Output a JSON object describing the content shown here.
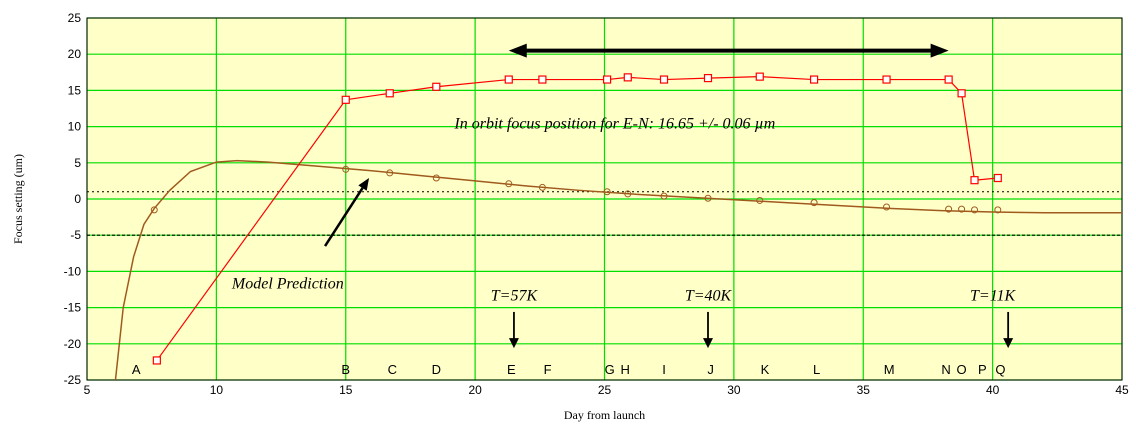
{
  "chart_data": {
    "type": "line",
    "title": "",
    "xlabel": "Day from launch",
    "ylabel": "Focus setting (um)",
    "xlim": [
      5,
      45
    ],
    "ylim": [
      -25,
      25
    ],
    "x_ticks": [
      5,
      10,
      15,
      20,
      25,
      30,
      35,
      40,
      45
    ],
    "y_ticks": [
      -25,
      -20,
      -15,
      -10,
      -5,
      0,
      5,
      10,
      15,
      20,
      25
    ],
    "grid": true,
    "colors": {
      "background": "#ffffc8",
      "grid": "#00dd00",
      "measured": "#ff0000",
      "model": "#a05a1e"
    },
    "series": [
      {
        "points": [
          [
            7.7,
            -22.3
          ],
          [
            15.0,
            13.7
          ],
          [
            16.7,
            14.6
          ],
          [
            18.5,
            15.5
          ],
          [
            21.3,
            16.5
          ],
          [
            22.6,
            16.5
          ],
          [
            25.1,
            16.5
          ],
          [
            25.9,
            16.8
          ],
          [
            27.3,
            16.5
          ],
          [
            29.0,
            16.7
          ],
          [
            31.0,
            16.9
          ],
          [
            33.1,
            16.5
          ],
          [
            35.9,
            16.5
          ],
          [
            38.3,
            16.5
          ],
          [
            38.8,
            14.6
          ],
          [
            39.3,
            2.6
          ],
          [
            40.2,
            2.9
          ]
        ]
      },
      {
        "curve": [
          [
            6.1,
            -25
          ],
          [
            6.4,
            -15
          ],
          [
            6.8,
            -8
          ],
          [
            7.2,
            -3.5
          ],
          [
            7.6,
            -1.3
          ],
          [
            8.2,
            1.2
          ],
          [
            9.0,
            3.8
          ],
          [
            10.0,
            5.1
          ],
          [
            10.8,
            5.3
          ],
          [
            12.0,
            5.1
          ],
          [
            14.0,
            4.5
          ],
          [
            16.0,
            3.9
          ],
          [
            18.0,
            3.2
          ],
          [
            20.0,
            2.5
          ],
          [
            22.0,
            1.8
          ],
          [
            24.0,
            1.2
          ],
          [
            26.0,
            0.7
          ],
          [
            28.0,
            0.3
          ],
          [
            30.0,
            -0.1
          ],
          [
            32.0,
            -0.5
          ],
          [
            34.0,
            -0.9
          ],
          [
            36.0,
            -1.3
          ],
          [
            38.0,
            -1.6
          ],
          [
            40.0,
            -1.8
          ],
          [
            42.0,
            -1.9
          ],
          [
            45.0,
            -1.9
          ]
        ],
        "markers": [
          [
            7.6,
            -1.5
          ],
          [
            15.0,
            4.1
          ],
          [
            16.7,
            3.6
          ],
          [
            18.5,
            2.9
          ],
          [
            21.3,
            2.1
          ],
          [
            22.6,
            1.6
          ],
          [
            25.1,
            1.0
          ],
          [
            25.9,
            0.7
          ],
          [
            27.3,
            0.4
          ],
          [
            29.0,
            0.1
          ],
          [
            31.0,
            -0.2
          ],
          [
            33.1,
            -0.5
          ],
          [
            35.9,
            -1.1
          ],
          [
            38.3,
            -1.4
          ],
          [
            38.8,
            -1.4
          ],
          [
            39.3,
            -1.5
          ],
          [
            40.2,
            -1.5
          ]
        ]
      }
    ],
    "reference_lines": [
      1,
      -5
    ],
    "range_arrow": {
      "x_start": 21.3,
      "x_end": 38.3,
      "y": 20.5
    },
    "annotations": {
      "in_orbit": {
        "text": "In orbit focus position for E-N: 16.65 +/- 0.06 µm",
        "x": 19.2,
        "y": 10.4
      },
      "model": {
        "text": "Model Prediction",
        "x": 10.6,
        "y": -11.7
      },
      "model_arrow": {
        "from": [
          14.2,
          -6.5
        ],
        "to": [
          15.9,
          2.9
        ]
      }
    },
    "temperatures": [
      {
        "label": "T=57K",
        "label_x": 21.5,
        "x": 21.5,
        "y_from": -15.6,
        "y_to": -20.6
      },
      {
        "label": "T=40K",
        "label_x": 29.0,
        "x": 29.0,
        "y_from": -15.6,
        "y_to": -20.6
      },
      {
        "label": "T=11K",
        "label_x": 40.0,
        "x": 40.6,
        "y_from": -15.6,
        "y_to": -20.6
      }
    ],
    "letters": [
      {
        "text": "A",
        "x": 6.9
      },
      {
        "text": "B",
        "x": 15.0
      },
      {
        "text": "C",
        "x": 16.8
      },
      {
        "text": "D",
        "x": 18.5
      },
      {
        "text": "E",
        "x": 21.4
      },
      {
        "text": "F",
        "x": 22.8
      },
      {
        "text": "G",
        "x": 25.2
      },
      {
        "text": "H",
        "x": 25.8
      },
      {
        "text": "I",
        "x": 27.3
      },
      {
        "text": "J",
        "x": 29.1
      },
      {
        "text": "K",
        "x": 31.2
      },
      {
        "text": "L",
        "x": 33.2
      },
      {
        "text": "M",
        "x": 36.0
      },
      {
        "text": "N",
        "x": 38.2
      },
      {
        "text": "O",
        "x": 38.8
      },
      {
        "text": "P",
        "x": 39.6
      },
      {
        "text": "Q",
        "x": 40.3
      }
    ]
  }
}
